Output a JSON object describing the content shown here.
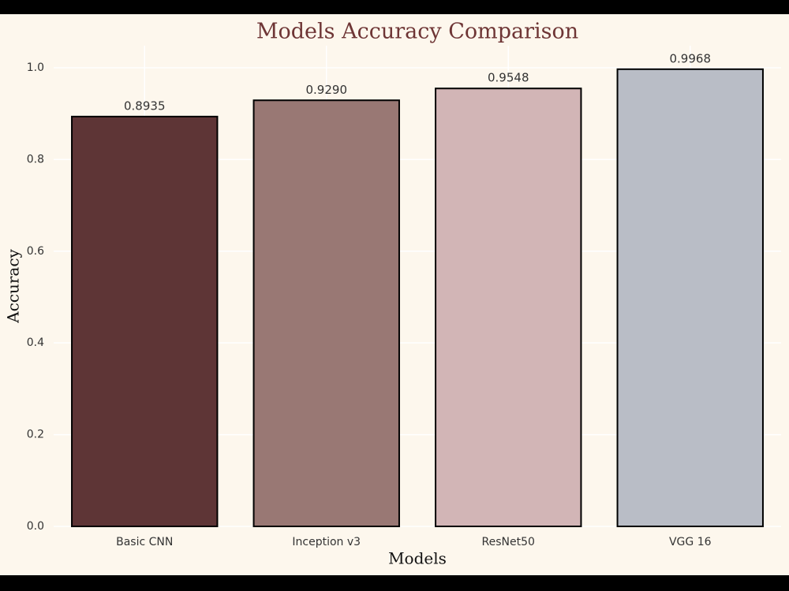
{
  "chart_data": {
    "type": "bar",
    "title": "Models Accuracy Comparison",
    "x_label": "Models",
    "y_label": "Accuracy",
    "categories": [
      "Basic CNN",
      "Inception v3",
      "ResNet50",
      "VGG 16"
    ],
    "values": [
      0.8935,
      0.929,
      0.9548,
      0.9968
    ],
    "value_labels": [
      "0.8935",
      "0.9290",
      "0.9548",
      "0.9968"
    ],
    "colors": [
      "#5e3536",
      "#997874",
      "#d2b5b6",
      "#b9bdc6"
    ],
    "ylim": [
      0,
      1.048
    ],
    "yticks": [
      {
        "value": 0,
        "label": "0.0"
      },
      0.2,
      0.4,
      0.6,
      0.8,
      {
        "value": 1,
        "label": "1.0"
      }
    ],
    "grid": true
  }
}
